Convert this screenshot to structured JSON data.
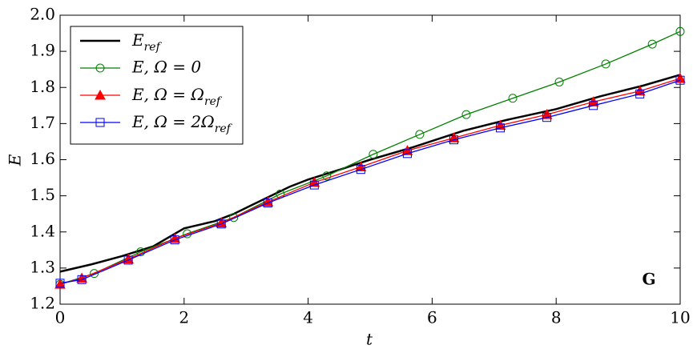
{
  "chart_data": {
    "type": "line",
    "xlabel": "t",
    "ylabel": "E",
    "annotation": "G",
    "xlim": [
      0,
      10
    ],
    "ylim": [
      1.2,
      2.0
    ],
    "xticks": [
      0,
      2,
      4,
      6,
      8,
      10
    ],
    "yticks": [
      1.2,
      1.3,
      1.4,
      1.5,
      1.6,
      1.7,
      1.8,
      1.9,
      {
        "value": 2,
        "label": "2.0"
      }
    ],
    "legend": "upper left",
    "series": [
      {
        "name": "E_ref",
        "color": "#000000",
        "marker": "none",
        "width": 2.5,
        "x": [
          0,
          0.5,
          1,
          1.5,
          2,
          2.5,
          2.8,
          3.1,
          3.4,
          3.7,
          4,
          4.5,
          5,
          5.7,
          6.5,
          7.2,
          8,
          8.7,
          9.4,
          10
        ],
        "values": [
          1.29,
          1.31,
          1.333,
          1.36,
          1.41,
          1.43,
          1.45,
          1.475,
          1.5,
          1.525,
          1.545,
          1.572,
          1.6,
          1.635,
          1.68,
          1.71,
          1.74,
          1.775,
          1.805,
          1.835
        ]
      },
      {
        "name": "E, Ω = 0",
        "color": "#008000",
        "marker": "circle",
        "width": 1.3,
        "x": [
          0,
          0.55,
          1.3,
          2.05,
          2.8,
          3.55,
          4.3,
          5.05,
          5.8,
          6.55,
          7.3,
          8.05,
          8.8,
          9.55,
          10
        ],
        "values": [
          1.255,
          1.285,
          1.345,
          1.395,
          1.44,
          1.505,
          1.555,
          1.615,
          1.67,
          1.725,
          1.77,
          1.815,
          1.865,
          1.92,
          1.955
        ]
      },
      {
        "name": "E, Ω = Ω_ref",
        "color": "#ff0000",
        "marker": "triangle",
        "width": 1.3,
        "x": [
          0,
          0.35,
          1.1,
          1.85,
          2.6,
          3.35,
          4.1,
          4.85,
          5.6,
          6.35,
          7.1,
          7.85,
          8.6,
          9.35,
          10
        ],
        "values": [
          1.255,
          1.272,
          1.325,
          1.382,
          1.425,
          1.483,
          1.537,
          1.58,
          1.625,
          1.66,
          1.695,
          1.725,
          1.76,
          1.79,
          1.825
        ]
      },
      {
        "name": "E, Ω = 2Ω_ref",
        "color": "#0000ff",
        "marker": "square",
        "width": 1.3,
        "x": [
          0,
          0.35,
          1.1,
          1.85,
          2.6,
          3.35,
          4.1,
          4.85,
          5.6,
          6.35,
          7.1,
          7.85,
          8.6,
          9.35,
          10
        ],
        "values": [
          1.258,
          1.268,
          1.322,
          1.378,
          1.422,
          1.48,
          1.53,
          1.573,
          1.617,
          1.655,
          1.688,
          1.717,
          1.75,
          1.782,
          1.82
        ]
      }
    ]
  }
}
